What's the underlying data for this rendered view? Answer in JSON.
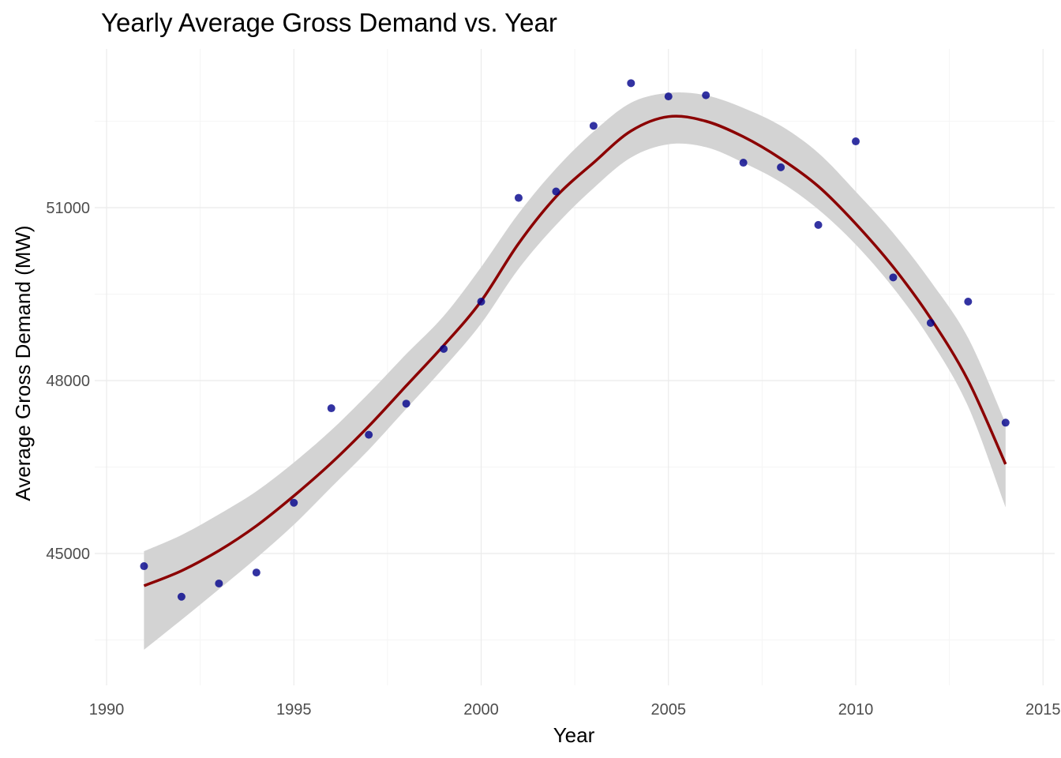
{
  "chart_data": {
    "type": "scatter",
    "title": "Yearly Average Gross Demand vs. Year",
    "xlabel": "Year",
    "ylabel": "Average Gross Demand (MW)",
    "xlim": [
      1990,
      2015
    ],
    "ylim": [
      43400,
      52800
    ],
    "x_ticks": [
      1990,
      1995,
      2000,
      2005,
      2010,
      2015
    ],
    "y_ticks": [
      45000,
      48000,
      51000
    ],
    "grid": true,
    "colors": {
      "points": "#00008b",
      "smooth_line": "#8b0000",
      "ribbon": "#d3d3d3",
      "grid_major": "#ebebeb",
      "grid_minor": "#f5f5f5"
    },
    "points": {
      "x": [
        1991,
        1992,
        1993,
        1994,
        1995,
        1996,
        1997,
        1998,
        1999,
        2000,
        2001,
        2002,
        2003,
        2004,
        2005,
        2006,
        2007,
        2008,
        2009,
        2010,
        2011,
        2012,
        2013,
        2014
      ],
      "y": [
        44780,
        44250,
        44480,
        44670,
        45880,
        47520,
        47060,
        47600,
        48550,
        49370,
        51170,
        51280,
        52420,
        53160,
        52930,
        52950,
        51780,
        51700,
        50700,
        52150,
        49790,
        49000,
        49370,
        47270
      ]
    },
    "smooth": {
      "x": [
        1991,
        1992,
        1993,
        1994,
        1995,
        1996,
        1997,
        1998,
        1999,
        2000,
        2001,
        2002,
        2003,
        2004,
        2005,
        2006,
        2007,
        2008,
        2009,
        2010,
        2011,
        2012,
        2013,
        2014
      ],
      "y": [
        44440,
        44700,
        45050,
        45480,
        46000,
        46570,
        47210,
        47910,
        48610,
        49380,
        50380,
        51190,
        51780,
        52330,
        52580,
        52500,
        52230,
        51850,
        51370,
        50720,
        49970,
        49080,
        48000,
        46550
      ],
      "lower": [
        43330,
        43850,
        44380,
        44920,
        45500,
        46150,
        46800,
        47510,
        48220,
        48990,
        49940,
        50700,
        51340,
        51870,
        52100,
        52050,
        51780,
        51440,
        50970,
        50360,
        49610,
        48700,
        47550,
        45800
      ],
      "upper": [
        45040,
        45320,
        45680,
        46080,
        46580,
        47140,
        47780,
        48460,
        49120,
        49970,
        50900,
        51680,
        52320,
        52820,
        52990,
        52950,
        52730,
        52420,
        51950,
        51280,
        50560,
        49720,
        48740,
        47260
      ]
    }
  }
}
